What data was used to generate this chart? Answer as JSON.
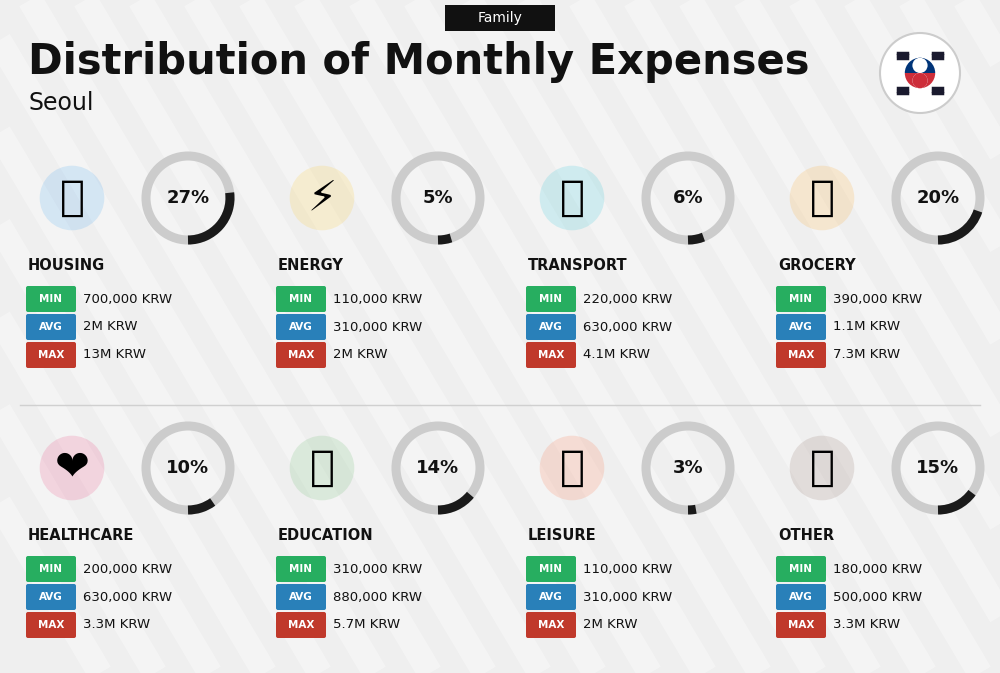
{
  "title": "Distribution of Monthly Expenses",
  "subtitle": "Seoul",
  "tag": "Family",
  "bg_color": "#efefef",
  "categories": [
    {
      "name": "HOUSING",
      "percent": 27,
      "min": "700,000 KRW",
      "avg": "2M KRW",
      "max": "13M KRW",
      "row": 0,
      "col": 0
    },
    {
      "name": "ENERGY",
      "percent": 5,
      "min": "110,000 KRW",
      "avg": "310,000 KRW",
      "max": "2M KRW",
      "row": 0,
      "col": 1
    },
    {
      "name": "TRANSPORT",
      "percent": 6,
      "min": "220,000 KRW",
      "avg": "630,000 KRW",
      "max": "4.1M KRW",
      "row": 0,
      "col": 2
    },
    {
      "name": "GROCERY",
      "percent": 20,
      "min": "390,000 KRW",
      "avg": "1.1M KRW",
      "max": "7.3M KRW",
      "row": 0,
      "col": 3
    },
    {
      "name": "HEALTHCARE",
      "percent": 10,
      "min": "200,000 KRW",
      "avg": "630,000 KRW",
      "max": "3.3M KRW",
      "row": 1,
      "col": 0
    },
    {
      "name": "EDUCATION",
      "percent": 14,
      "min": "310,000 KRW",
      "avg": "880,000 KRW",
      "max": "5.7M KRW",
      "row": 1,
      "col": 1
    },
    {
      "name": "LEISURE",
      "percent": 3,
      "min": "110,000 KRW",
      "avg": "310,000 KRW",
      "max": "2M KRW",
      "row": 1,
      "col": 2
    },
    {
      "name": "OTHER",
      "percent": 15,
      "min": "180,000 KRW",
      "avg": "500,000 KRW",
      "max": "3.3M KRW",
      "row": 1,
      "col": 3
    }
  ],
  "min_color": "#27ae60",
  "avg_color": "#2980b9",
  "max_color": "#c0392b",
  "text_color": "#111111",
  "arc_dark": "#1a1a1a",
  "arc_light": "#cccccc",
  "stripe_color": "#ffffff"
}
